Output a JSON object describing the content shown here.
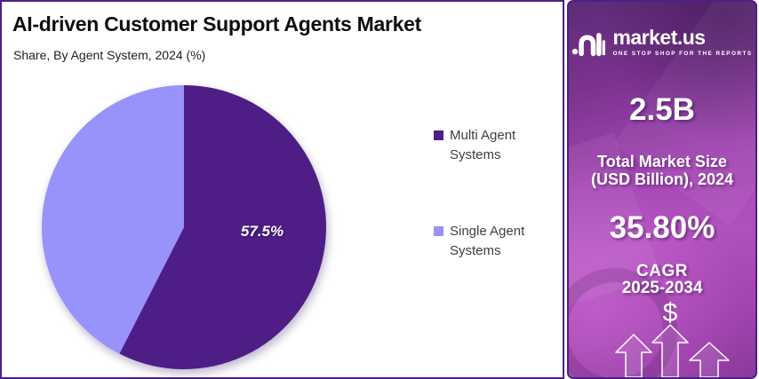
{
  "header": {
    "title": "AI-driven Customer Support Agents Market",
    "subtitle": "Share, By Agent System, 2024 (%)"
  },
  "chart_data": {
    "type": "pie",
    "title": "AI-driven Customer Support Agents Market",
    "subtitle": "Share, By Agent System, 2024 (%)",
    "categories": [
      "Multi Agent Systems",
      "Single Agent Systems"
    ],
    "values": [
      57.5,
      42.5
    ],
    "unit": "%",
    "colors": [
      "#4e1e86",
      "#9793fa"
    ],
    "data_labels": [
      "57.5%",
      ""
    ],
    "start_angle_deg": 0,
    "direction": "clockwise",
    "legend_position": "right",
    "grid": false
  },
  "sidebar": {
    "brand": "market.us",
    "tagline": "ONE STOP SHOP FOR THE REPORTS",
    "market_size_value": "2.5B",
    "market_size_label_line1": "Total Market Size",
    "market_size_label_line2": "(USD Billion), 2024",
    "cagr_value": "35.80%",
    "cagr_label": "CAGR",
    "cagr_period": "2025-2034",
    "dollar_symbol": "$"
  },
  "colors": {
    "panel_border": "#4b2182",
    "slice_multi_agent": "#4e1e86",
    "slice_single_agent": "#9793fa",
    "sidebar_magenta": "#a846b5",
    "sidebar_text": "#ffffff",
    "legend_text": "#3d3d47"
  }
}
